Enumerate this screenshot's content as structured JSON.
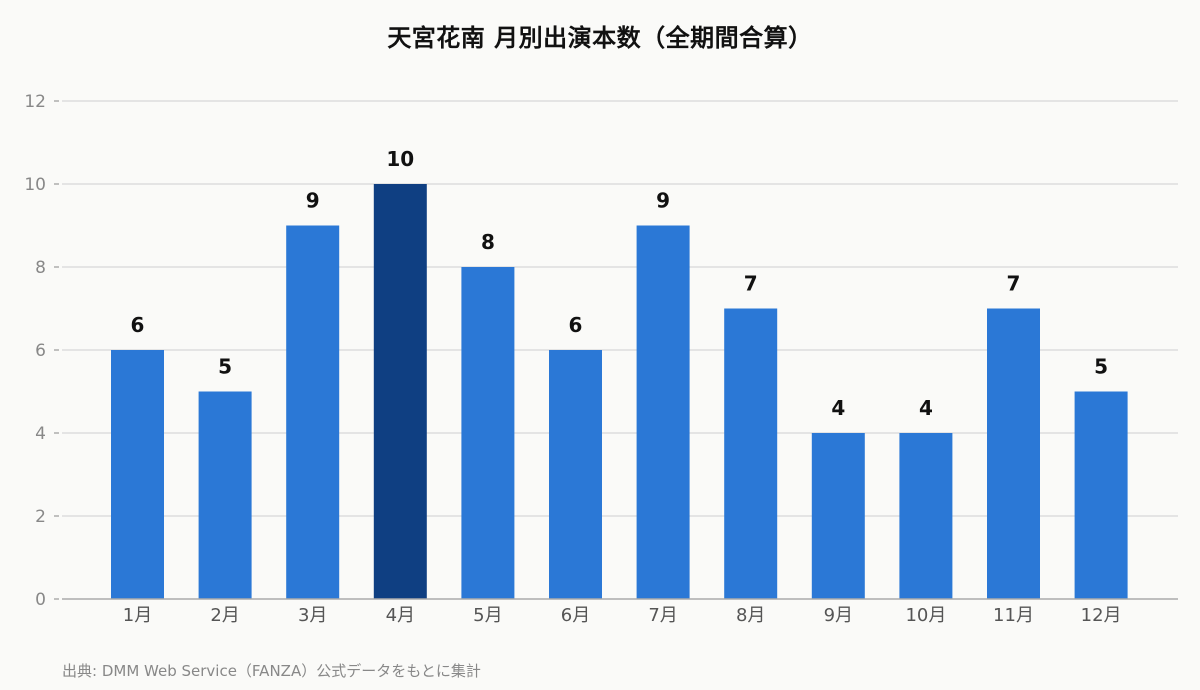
{
  "chart_data": {
    "type": "bar",
    "title": "天宮花南 月別出演本数（全期間合算）",
    "categories": [
      "1月",
      "2月",
      "3月",
      "4月",
      "5月",
      "6月",
      "7月",
      "8月",
      "9月",
      "10月",
      "11月",
      "12月"
    ],
    "values": [
      6,
      5,
      9,
      10,
      8,
      6,
      9,
      7,
      4,
      4,
      7,
      5
    ],
    "ylim": [
      0,
      12
    ],
    "yticks": [
      0,
      2,
      4,
      6,
      8,
      10,
      12
    ],
    "xlabel": "",
    "ylabel": "",
    "grid": true,
    "bar_color": "#2b78d6",
    "highlight_color": "#0f3f82",
    "highlight_category": "4月",
    "data_labels": true
  },
  "source": "出典: DMM Web Service（FANZA）公式データをもとに集計"
}
